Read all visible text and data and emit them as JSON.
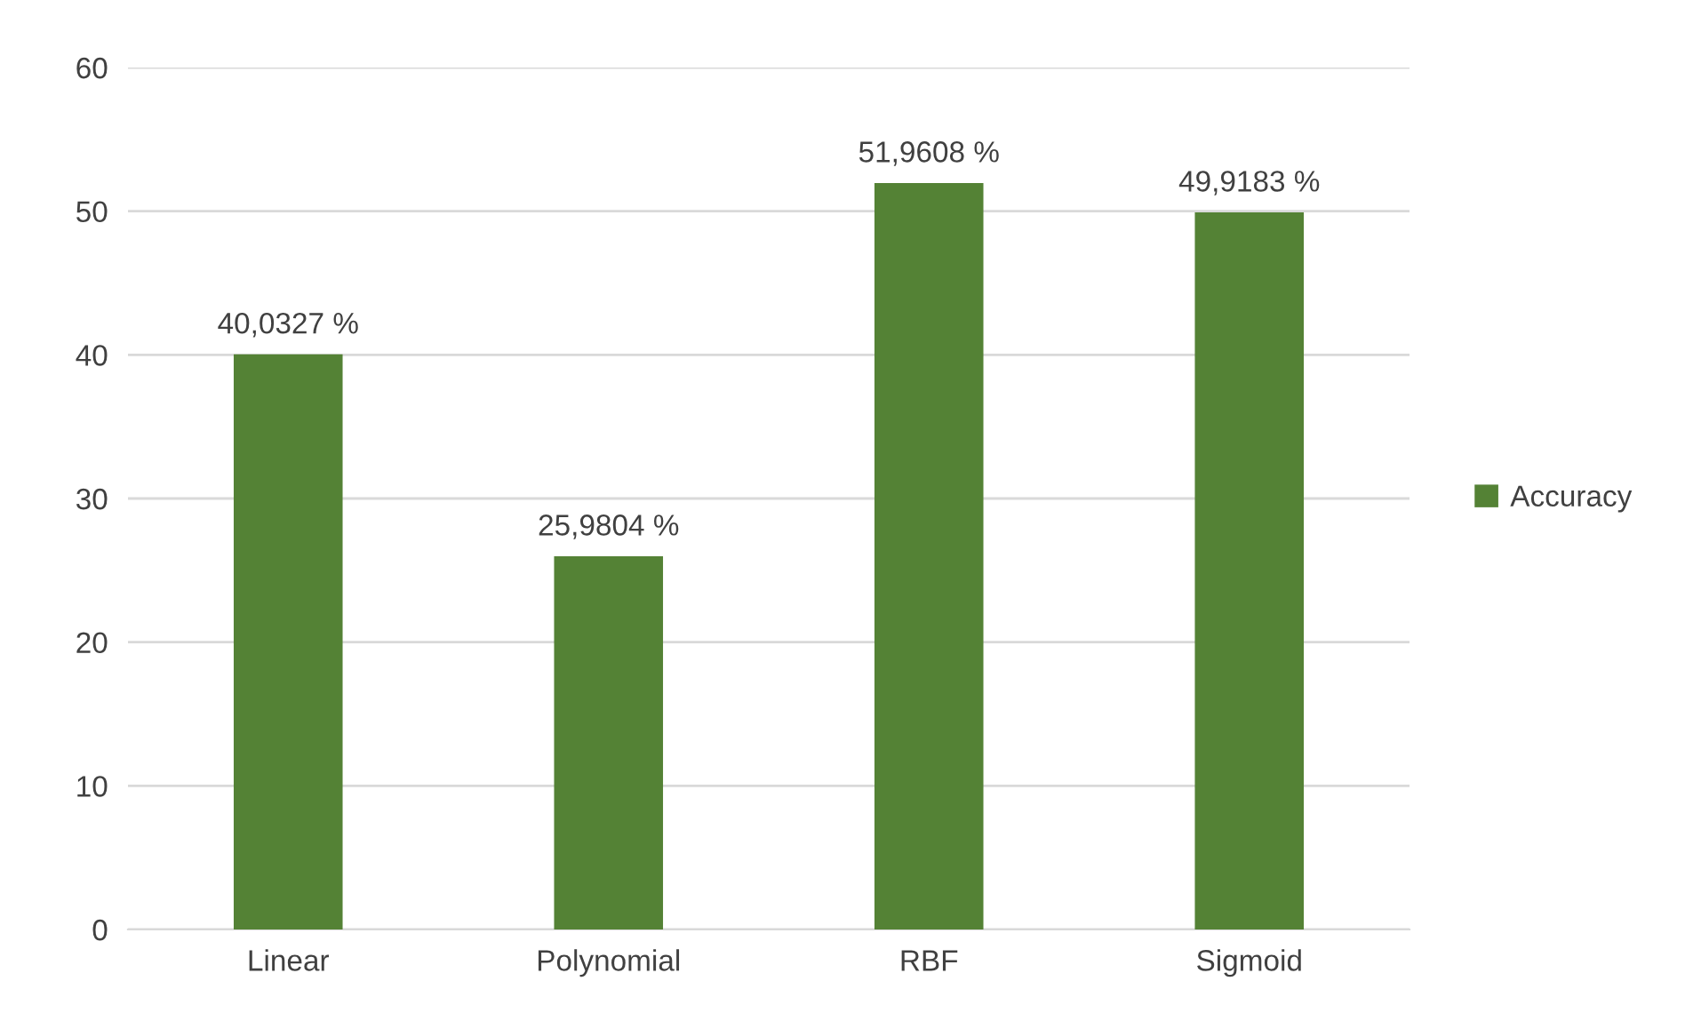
{
  "chart_data": {
    "type": "bar",
    "categories": [
      "Linear",
      "Polynomial",
      "RBF",
      "Sigmoid"
    ],
    "series": [
      {
        "name": "Accuracy",
        "color": "#548235",
        "values": [
          40.0327,
          25.9804,
          51.9608,
          49.9183
        ],
        "value_labels": [
          "40,0327 %",
          "25,9804 %",
          "51,9608 %",
          "49,9183 %"
        ]
      }
    ],
    "ylim": [
      0,
      60
    ],
    "yticks": [
      0,
      10,
      20,
      30,
      40,
      50,
      60
    ],
    "grid": "y",
    "legend": "right"
  }
}
